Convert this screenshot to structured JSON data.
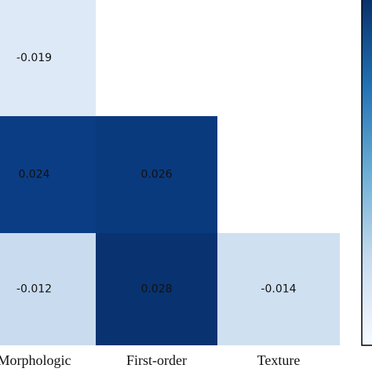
{
  "chart_data": {
    "type": "heatmap",
    "columns": [
      "Morphologic",
      "First-order",
      "Texture"
    ],
    "values": [
      [
        -0.019,
        null,
        null
      ],
      [
        0.024,
        0.026,
        null
      ],
      [
        -0.012,
        0.028,
        -0.014
      ]
    ],
    "colors": [
      [
        "#dde9f6",
        null,
        null
      ],
      [
        "#0b3d84",
        "#0a3a7e",
        null
      ],
      [
        "#c9dcef",
        "#083370",
        "#cfe0f1"
      ]
    ],
    "colorbar": {
      "colors": [
        "#08306b",
        "#2171b5",
        "#6baed6",
        "#c6dbef",
        "#f7fbff"
      ]
    }
  }
}
